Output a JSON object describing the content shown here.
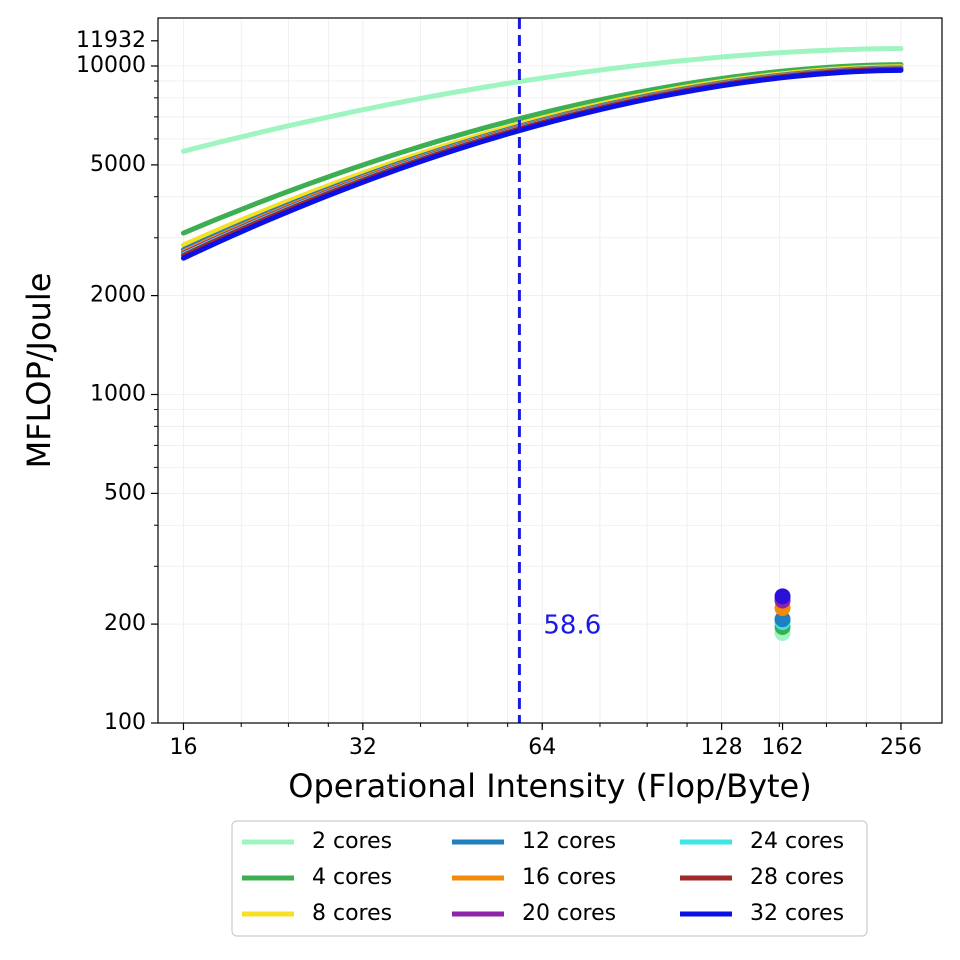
{
  "chart_data": {
    "type": "line",
    "title": "",
    "xlabel": "Operational Intensity (Flop/Byte)",
    "ylabel": "MFLOP/Joule",
    "x_scale": "log2",
    "y_scale": "log10",
    "xlim": [
      14.5,
      300
    ],
    "ylim": [
      100,
      14000
    ],
    "x_ticks": [
      16,
      32,
      64,
      128,
      162,
      256
    ],
    "x_tick_labels": [
      "16",
      "32",
      "64",
      "128",
      "162",
      "256"
    ],
    "y_ticks": [
      100,
      200,
      500,
      1000,
      2000,
      5000,
      10000,
      11932
    ],
    "y_tick_labels": [
      "100",
      "200",
      "500",
      "1000",
      "2000",
      "5000",
      "10000",
      "11932"
    ],
    "grid": true,
    "x_range": [
      16,
      256
    ],
    "series": [
      {
        "name": "2 cores",
        "color": "#9ef5c0",
        "y_at_16": 5500,
        "y_at_256": 11300
      },
      {
        "name": "4 cores",
        "color": "#3daf52",
        "y_at_16": 3100,
        "y_at_256": 10100
      },
      {
        "name": "8 cores",
        "color": "#f5e026",
        "y_at_16": 2850,
        "y_at_256": 9950
      },
      {
        "name": "12 cores",
        "color": "#1f7fbf",
        "y_at_16": 2760,
        "y_at_256": 9870
      },
      {
        "name": "16 cores",
        "color": "#f58a0a",
        "y_at_16": 2720,
        "y_at_256": 9840
      },
      {
        "name": "20 cores",
        "color": "#8e24aa",
        "y_at_16": 2690,
        "y_at_256": 9820
      },
      {
        "name": "24 cores",
        "color": "#3ee6e6",
        "y_at_16": 2670,
        "y_at_256": 9800
      },
      {
        "name": "28 cores",
        "color": "#9e2a2a",
        "y_at_16": 2650,
        "y_at_256": 9780
      },
      {
        "name": "32 cores",
        "color": "#0a10e6",
        "y_at_16": 2600,
        "y_at_256": 9700
      }
    ],
    "points": [
      {
        "x": 162,
        "y": 188,
        "color": "#9ef5c0"
      },
      {
        "x": 162,
        "y": 196,
        "color": "#3daf52"
      },
      {
        "x": 162,
        "y": 203,
        "color": "#3ee6e6"
      },
      {
        "x": 162,
        "y": 207,
        "color": "#1f7fbf"
      },
      {
        "x": 162,
        "y": 224,
        "color": "#f58a0a"
      },
      {
        "x": 162,
        "y": 236,
        "color": "#8e24aa"
      },
      {
        "x": 162,
        "y": 243,
        "color": "#2a10d8"
      }
    ],
    "vline": {
      "x": 58.6,
      "label": "58.6",
      "color": "#1a1ae0"
    },
    "legend": {
      "placement": "below",
      "columns": 3
    }
  }
}
